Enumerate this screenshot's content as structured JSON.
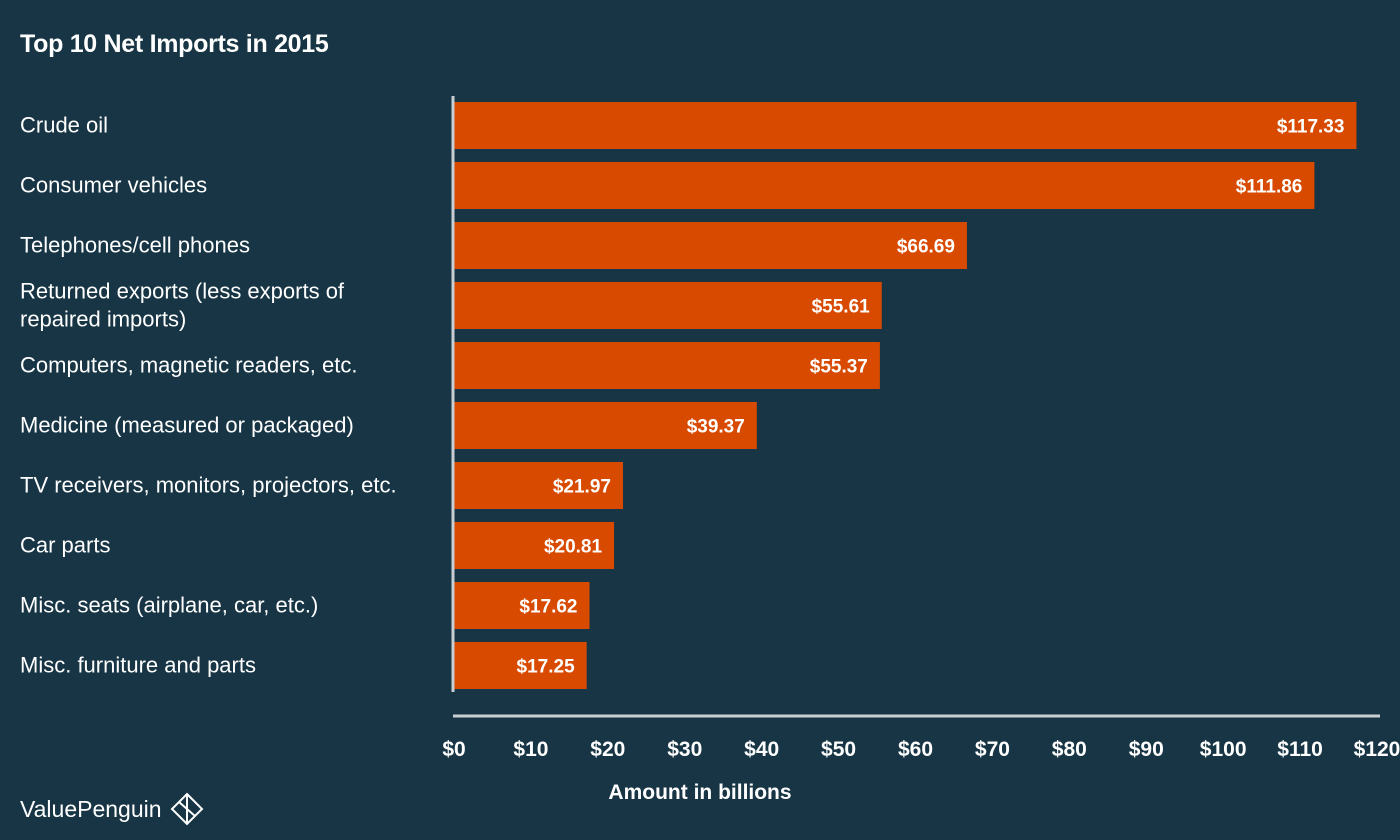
{
  "colors": {
    "background": "#173544",
    "bar": "#d84a00",
    "axis": "#c8ced2",
    "text": "#ffffff"
  },
  "brand": {
    "name": "ValuePenguin",
    "icon": "diamond-logo-icon"
  },
  "chart_data": {
    "type": "bar",
    "orientation": "horizontal",
    "title": "Top 10 Net Imports in 2015",
    "xlabel": "Amount in billions",
    "ylabel": "",
    "xlim": [
      0,
      120
    ],
    "x_ticks": [
      0,
      10,
      20,
      30,
      40,
      50,
      60,
      70,
      80,
      90,
      100,
      110,
      120
    ],
    "x_tick_labels": [
      "$0",
      "$10",
      "$20",
      "$30",
      "$40",
      "$50",
      "$60",
      "$70",
      "$80",
      "$90",
      "$100",
      "$110",
      "$120"
    ],
    "grid": false,
    "legend": "none",
    "categories": [
      [
        "Crude oil"
      ],
      [
        "Consumer vehicles"
      ],
      [
        "Telephones/cell phones"
      ],
      [
        "Returned exports (less exports of",
        "repaired imports)"
      ],
      [
        "Computers, magnetic readers, etc."
      ],
      [
        "Medicine (measured or packaged)"
      ],
      [
        "TV receivers, monitors, projectors, etc."
      ],
      [
        "Car parts"
      ],
      [
        "Misc. seats (airplane, car, etc.)"
      ],
      [
        "Misc. furniture and parts"
      ]
    ],
    "values": [
      117.33,
      111.86,
      66.69,
      55.61,
      55.37,
      39.37,
      21.97,
      20.81,
      17.62,
      17.25
    ],
    "value_labels": [
      "$117.33",
      "$111.86",
      "$66.69",
      "$55.61",
      "$55.37",
      "$39.37",
      "$21.97",
      "$20.81",
      "$17.62",
      "$17.25"
    ]
  }
}
